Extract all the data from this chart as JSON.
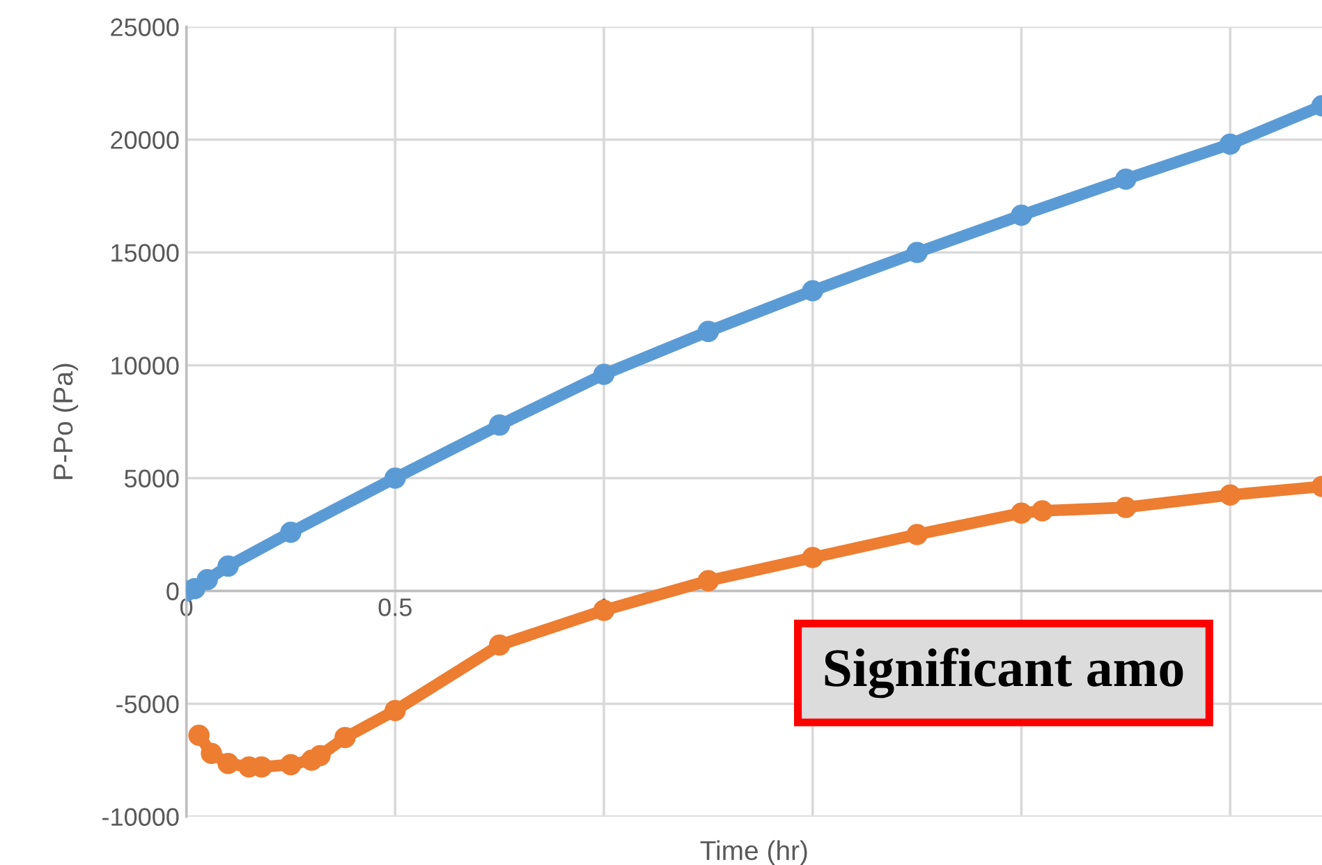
{
  "chart_data": {
    "type": "line",
    "xlabel": "Time (hr)",
    "ylabel": "P-Po (Pa)",
    "xlim": [
      0,
      2.72
    ],
    "ylim": [
      -10000,
      25000
    ],
    "xticks": [
      0,
      0.5,
      1,
      {
        "value": 1.5,
        "label": null
      },
      {
        "value": 2,
        "label": null
      },
      {
        "value": 2.5,
        "label": null
      }
    ],
    "yticks": [
      -10000,
      -5000,
      0,
      5000,
      10000,
      15000,
      20000,
      25000
    ],
    "grid": true,
    "legend": false,
    "marker": "circle",
    "line_style": "solid",
    "annotations": [
      "Significant amo"
    ],
    "series": [
      {
        "color": "#5b9bd5",
        "x": [
          0,
          0.02,
          0.05,
          0.1,
          0.25,
          0.5,
          0.75,
          1,
          1.25,
          1.5,
          1.75,
          2,
          2.25,
          2.5,
          2.72
        ],
        "values": [
          0,
          100,
          500,
          1100,
          2600,
          5000,
          7350,
          9600,
          11500,
          13300,
          15000,
          16650,
          18250,
          19800,
          21500
        ]
      },
      {
        "color": "#ed7d31",
        "x": [
          0.03,
          0.06,
          0.1,
          0.15,
          0.18,
          0.25,
          0.3,
          0.32,
          0.38,
          0.5,
          0.75,
          1,
          1.25,
          1.5,
          1.75,
          2,
          2.05,
          2.25,
          2.5,
          2.72
        ],
        "values": [
          -6400,
          -7200,
          -7650,
          -7800,
          -7800,
          -7700,
          -7500,
          -7300,
          -6500,
          -5300,
          -2400,
          -860,
          450,
          1480,
          2500,
          3450,
          3550,
          3700,
          4250,
          4630
        ]
      }
    ]
  }
}
